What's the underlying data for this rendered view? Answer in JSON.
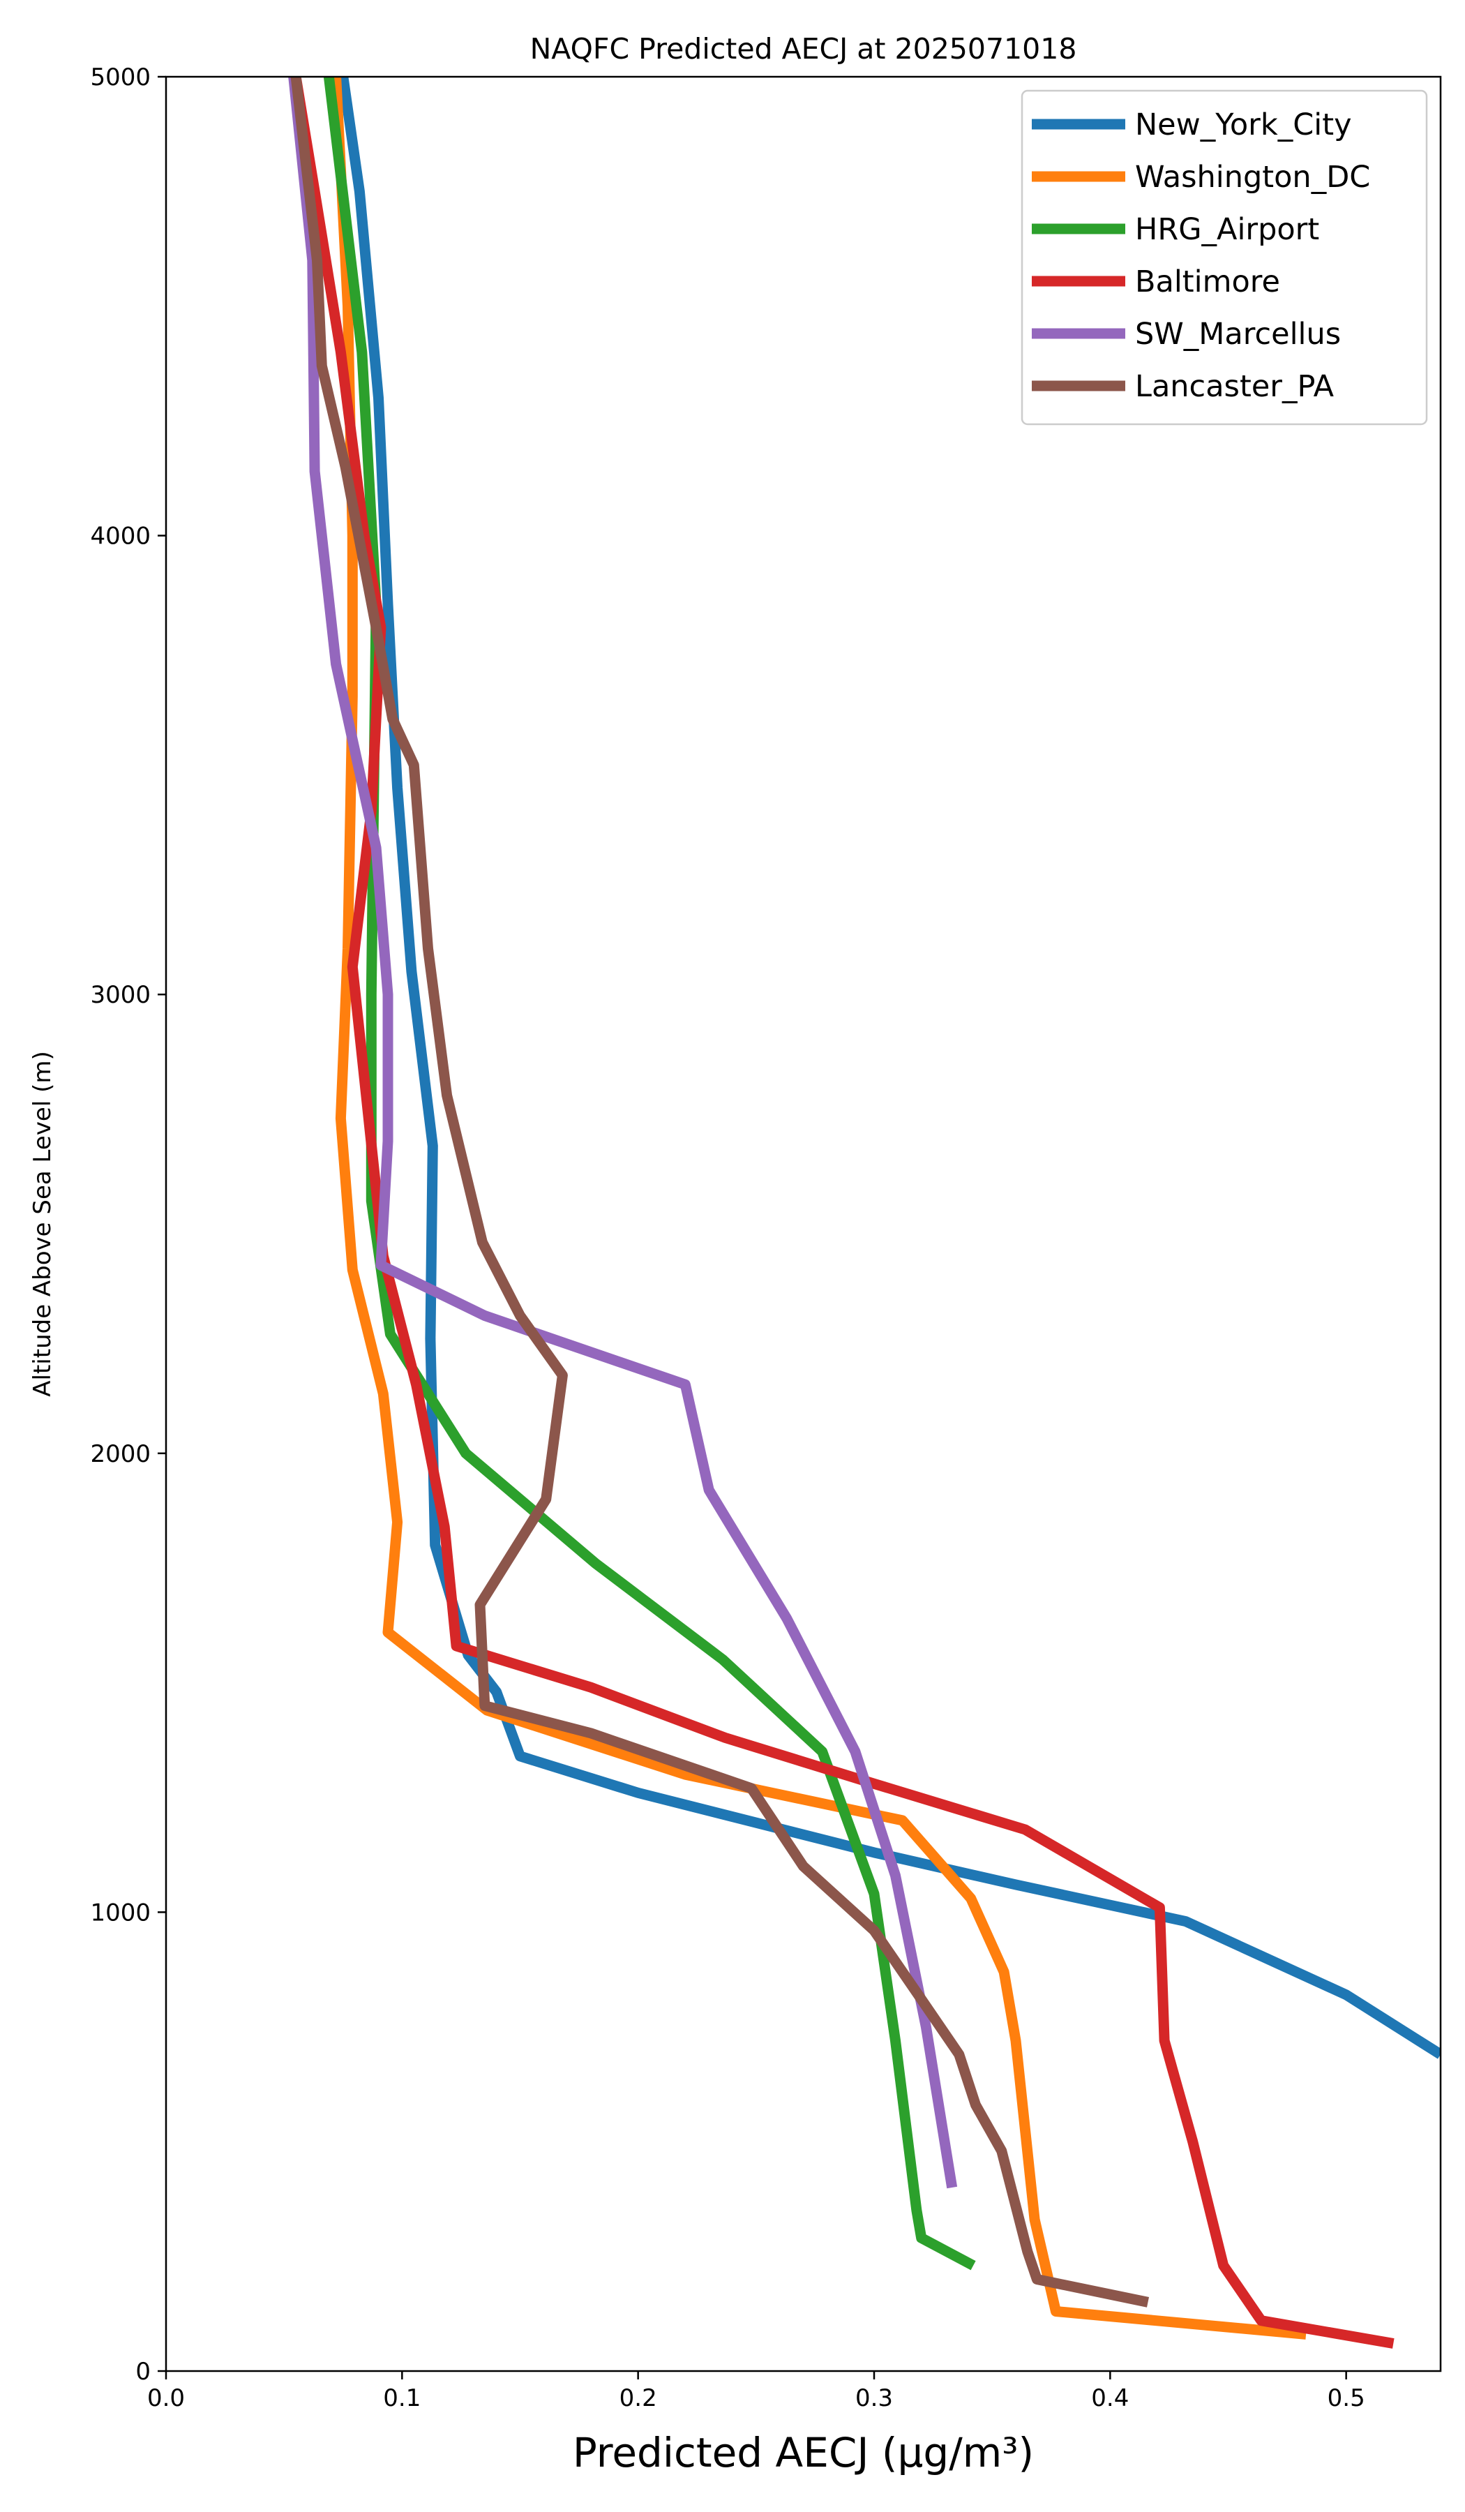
{
  "chart_data": {
    "type": "line",
    "title": "NAQFC Predicted AECJ at 2025071018",
    "xlabel": "Predicted AECJ (μg/m³)",
    "ylabel": "Altitude Above Sea Level (m)",
    "xlim": [
      0.0,
      0.54
    ],
    "ylim": [
      0,
      5000
    ],
    "xticks": [
      "0.0",
      "0.1",
      "0.2",
      "0.3",
      "0.4",
      "0.5"
    ],
    "xtick_values": [
      0.0,
      0.1,
      0.2,
      0.3,
      0.4,
      0.5
    ],
    "yticks": [
      "0",
      "1000",
      "2000",
      "3000",
      "4000",
      "5000"
    ],
    "ytick_values": [
      0,
      1000,
      2000,
      3000,
      4000,
      5000
    ],
    "grid": false,
    "legend_position": "top-right",
    "series": [
      {
        "name": "New_York_City",
        "color": "#1f77b4",
        "points": [
          [
            0.075,
            5000
          ],
          [
            0.082,
            4750
          ],
          [
            0.09,
            4300
          ],
          [
            0.094,
            3850
          ],
          [
            0.098,
            3450
          ],
          [
            0.104,
            3050
          ],
          [
            0.113,
            2670
          ],
          [
            0.112,
            2250
          ],
          [
            0.114,
            1800
          ],
          [
            0.128,
            1560
          ],
          [
            0.14,
            1480
          ],
          [
            0.15,
            1340
          ],
          [
            0.2,
            1260
          ],
          [
            0.3,
            1130
          ],
          [
            0.36,
            1060
          ],
          [
            0.432,
            980
          ],
          [
            0.5,
            820
          ],
          [
            0.54,
            690
          ]
        ]
      },
      {
        "name": "Washington_DC",
        "color": "#ff7f0e",
        "points": [
          [
            0.072,
            5000
          ],
          [
            0.077,
            4500
          ],
          [
            0.079,
            4000
          ],
          [
            0.079,
            3650
          ],
          [
            0.077,
            3100
          ],
          [
            0.074,
            2730
          ],
          [
            0.079,
            2400
          ],
          [
            0.092,
            2130
          ],
          [
            0.098,
            1850
          ],
          [
            0.094,
            1610
          ],
          [
            0.136,
            1440
          ],
          [
            0.22,
            1300
          ],
          [
            0.312,
            1200
          ],
          [
            0.341,
            1030
          ],
          [
            0.355,
            870
          ],
          [
            0.36,
            720
          ],
          [
            0.368,
            330
          ],
          [
            0.377,
            130
          ],
          [
            0.483,
            80
          ]
        ]
      },
      {
        "name": "HRG_Airport",
        "color": "#2ca02c",
        "points": [
          [
            0.069,
            5000
          ],
          [
            0.083,
            4400
          ],
          [
            0.089,
            3850
          ],
          [
            0.087,
            3000
          ],
          [
            0.087,
            2550
          ],
          [
            0.095,
            2260
          ],
          [
            0.127,
            2000
          ],
          [
            0.182,
            1760
          ],
          [
            0.236,
            1550
          ],
          [
            0.278,
            1350
          ],
          [
            0.3,
            1040
          ],
          [
            0.309,
            720
          ],
          [
            0.318,
            350
          ],
          [
            0.32,
            290
          ],
          [
            0.342,
            230
          ]
        ]
      },
      {
        "name": "Baltimore",
        "color": "#d62728",
        "points": [
          [
            0.055,
            5000
          ],
          [
            0.063,
            4750
          ],
          [
            0.074,
            4400
          ],
          [
            0.084,
            4000
          ],
          [
            0.091,
            3800
          ],
          [
            0.087,
            3400
          ],
          [
            0.079,
            3060
          ],
          [
            0.092,
            2430
          ],
          [
            0.106,
            2150
          ],
          [
            0.118,
            1840
          ],
          [
            0.123,
            1580
          ],
          [
            0.18,
            1490
          ],
          [
            0.237,
            1380
          ],
          [
            0.3,
            1280
          ],
          [
            0.364,
            1180
          ],
          [
            0.421,
            1010
          ],
          [
            0.423,
            720
          ],
          [
            0.435,
            500
          ],
          [
            0.448,
            230
          ],
          [
            0.464,
            110
          ],
          [
            0.52,
            60
          ]
        ]
      },
      {
        "name": "SW_Marcellus",
        "color": "#9467bd",
        "points": [
          [
            0.054,
            5000
          ],
          [
            0.062,
            4600
          ],
          [
            0.063,
            4140
          ],
          [
            0.072,
            3720
          ],
          [
            0.089,
            3320
          ],
          [
            0.094,
            3000
          ],
          [
            0.094,
            2680
          ],
          [
            0.091,
            2410
          ],
          [
            0.135,
            2300
          ],
          [
            0.22,
            2150
          ],
          [
            0.23,
            1920
          ],
          [
            0.263,
            1640
          ],
          [
            0.292,
            1350
          ],
          [
            0.309,
            1080
          ],
          [
            0.322,
            750
          ],
          [
            0.333,
            400
          ]
        ]
      },
      {
        "name": "Lancaster_PA",
        "color": "#8c564b",
        "points": [
          [
            0.055,
            5000
          ],
          [
            0.064,
            4600
          ],
          [
            0.066,
            4370
          ],
          [
            0.076,
            4150
          ],
          [
            0.089,
            3800
          ],
          [
            0.096,
            3600
          ],
          [
            0.105,
            3500
          ],
          [
            0.111,
            3100
          ],
          [
            0.119,
            2780
          ],
          [
            0.134,
            2460
          ],
          [
            0.15,
            2300
          ],
          [
            0.168,
            2170
          ],
          [
            0.161,
            1900
          ],
          [
            0.133,
            1670
          ],
          [
            0.135,
            1450
          ],
          [
            0.18,
            1390
          ],
          [
            0.248,
            1270
          ],
          [
            0.27,
            1100
          ],
          [
            0.3,
            960
          ],
          [
            0.32,
            810
          ],
          [
            0.336,
            690
          ],
          [
            0.343,
            580
          ],
          [
            0.354,
            480
          ],
          [
            0.365,
            260
          ],
          [
            0.369,
            200
          ],
          [
            0.416,
            150
          ]
        ]
      }
    ]
  }
}
